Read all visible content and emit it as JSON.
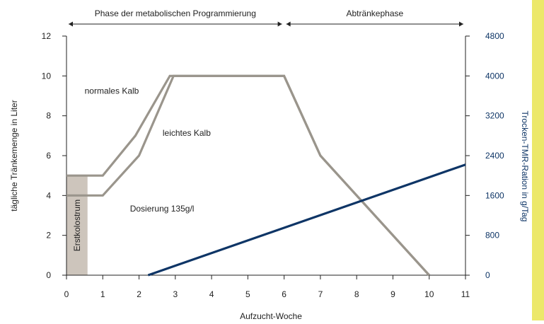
{
  "colors": {
    "normal_line": "#9a958c",
    "light_line": "#9a958c",
    "tmr_line": "#0e3566",
    "colostrum_box": "#cdc5bc",
    "right_axis": "#0e3566",
    "axis": "#222222",
    "side_strip": "#ece86a"
  },
  "chart_data": {
    "type": "line",
    "xlabel": "Aufzucht-Woche",
    "ylabel": "tägliche Tränkemenge in Liter",
    "y2label": "Trocken-TMR-Ration in g/Tag",
    "xlim": [
      0,
      11
    ],
    "ylim": [
      0,
      12
    ],
    "y2lim": [
      0,
      4800
    ],
    "x_ticks": [
      0,
      1,
      2,
      3,
      4,
      5,
      6,
      7,
      8,
      9,
      10,
      11
    ],
    "y_ticks": [
      0,
      2,
      4,
      6,
      8,
      10,
      12
    ],
    "y2_ticks": [
      0,
      800,
      1600,
      2400,
      3200,
      4000,
      4800
    ],
    "phases": [
      {
        "label": "Phase der metabolischen Programmierung",
        "start": 0,
        "end": 6
      },
      {
        "label": "Abtränkephase",
        "start": 6,
        "end": 11
      }
    ],
    "colostrum_band": {
      "label": "Erstkolostrum",
      "x_start": 0,
      "x_end": 0.58,
      "y_top": 5
    },
    "series": [
      {
        "name": "normales Kalb",
        "axis": "left",
        "x": [
          0,
          1,
          1.9,
          2.85,
          6,
          7,
          10
        ],
        "y": [
          5,
          5,
          7,
          10,
          10,
          6,
          0
        ]
      },
      {
        "name": "leichtes Kalb",
        "axis": "left",
        "x": [
          0,
          1,
          2,
          2.95,
          6,
          7,
          10
        ],
        "y": [
          4,
          4,
          6,
          10,
          10,
          6,
          0
        ]
      },
      {
        "name": "Dosierung 135g/l",
        "axis": "right",
        "x": [
          2.25,
          11
        ],
        "y": [
          0,
          2220
        ]
      }
    ],
    "annotations": [
      {
        "text": "normales Kalb",
        "x": 0.5,
        "y": 9.1
      },
      {
        "text": "leichtes Kalb",
        "x": 2.65,
        "y": 7.0
      },
      {
        "text": "Dosierung 135g/l",
        "x": 1.75,
        "y": 3.2
      }
    ],
    "grid": false
  }
}
